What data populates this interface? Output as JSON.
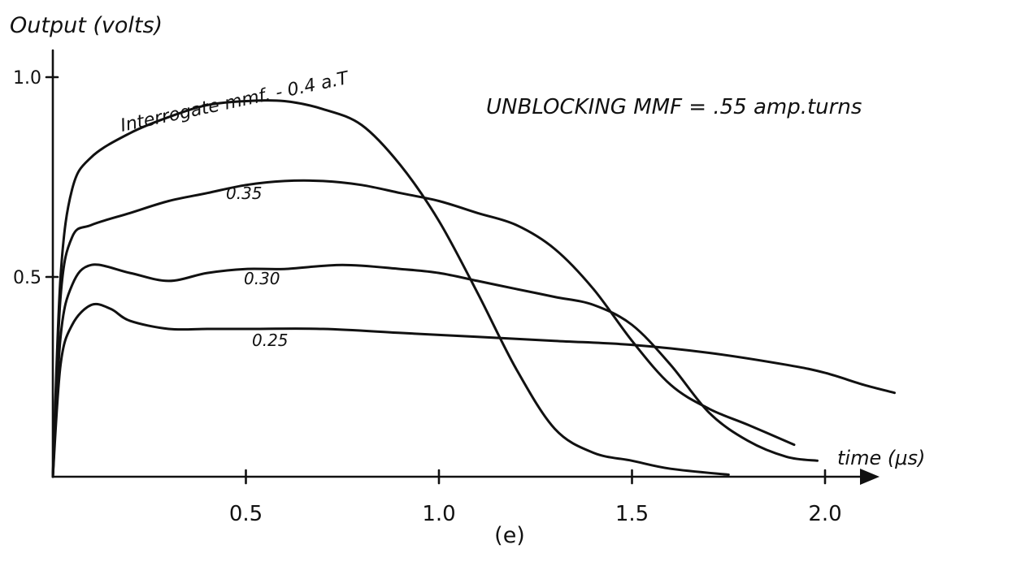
{
  "chart_data": {
    "type": "line",
    "ylabel": "Output (volts)",
    "xlabel": "time (μs)",
    "annotation": "UNBLOCKING MMF = .55 amp.turns",
    "panel_label": "(e)",
    "xlim": [
      0,
      2.2
    ],
    "ylim": [
      0,
      1.0
    ],
    "x_ticks": [
      0.5,
      1.0,
      1.5,
      2.0
    ],
    "x_tick_labels": [
      "0.5",
      "1.0",
      "1.5",
      "2.0"
    ],
    "y_ticks": [
      0.5,
      1.0
    ],
    "y_tick_labels": [
      "0.5",
      "1.0"
    ],
    "grid": false,
    "series": [
      {
        "name": "Interrogate mmf. - 0.4 a.T",
        "points": [
          [
            0,
            0
          ],
          [
            0.02,
            0.5
          ],
          [
            0.05,
            0.72
          ],
          [
            0.1,
            0.8
          ],
          [
            0.2,
            0.86
          ],
          [
            0.3,
            0.9
          ],
          [
            0.4,
            0.93
          ],
          [
            0.5,
            0.94
          ],
          [
            0.6,
            0.94
          ],
          [
            0.7,
            0.92
          ],
          [
            0.8,
            0.88
          ],
          [
            0.9,
            0.78
          ],
          [
            1.0,
            0.64
          ],
          [
            1.1,
            0.46
          ],
          [
            1.2,
            0.27
          ],
          [
            1.3,
            0.12
          ],
          [
            1.4,
            0.06
          ],
          [
            1.5,
            0.04
          ],
          [
            1.6,
            0.02
          ],
          [
            1.75,
            0.005
          ]
        ]
      },
      {
        "name": "0.35",
        "points": [
          [
            0,
            0
          ],
          [
            0.02,
            0.45
          ],
          [
            0.05,
            0.6
          ],
          [
            0.1,
            0.63
          ],
          [
            0.2,
            0.66
          ],
          [
            0.3,
            0.69
          ],
          [
            0.4,
            0.71
          ],
          [
            0.5,
            0.73
          ],
          [
            0.6,
            0.74
          ],
          [
            0.7,
            0.74
          ],
          [
            0.8,
            0.73
          ],
          [
            0.9,
            0.71
          ],
          [
            1.0,
            0.69
          ],
          [
            1.1,
            0.66
          ],
          [
            1.2,
            0.63
          ],
          [
            1.3,
            0.57
          ],
          [
            1.4,
            0.47
          ],
          [
            1.5,
            0.34
          ],
          [
            1.6,
            0.23
          ],
          [
            1.7,
            0.17
          ],
          [
            1.8,
            0.13
          ],
          [
            1.92,
            0.08
          ]
        ]
      },
      {
        "name": "0.30",
        "points": [
          [
            0,
            0
          ],
          [
            0.02,
            0.35
          ],
          [
            0.05,
            0.48
          ],
          [
            0.1,
            0.53
          ],
          [
            0.2,
            0.51
          ],
          [
            0.3,
            0.49
          ],
          [
            0.4,
            0.51
          ],
          [
            0.5,
            0.52
          ],
          [
            0.6,
            0.52
          ],
          [
            0.75,
            0.53
          ],
          [
            0.9,
            0.52
          ],
          [
            1.0,
            0.51
          ],
          [
            1.1,
            0.49
          ],
          [
            1.2,
            0.47
          ],
          [
            1.3,
            0.45
          ],
          [
            1.4,
            0.43
          ],
          [
            1.5,
            0.38
          ],
          [
            1.6,
            0.28
          ],
          [
            1.7,
            0.16
          ],
          [
            1.8,
            0.09
          ],
          [
            1.9,
            0.05
          ],
          [
            1.98,
            0.04
          ]
        ]
      },
      {
        "name": "0.25",
        "points": [
          [
            0,
            0
          ],
          [
            0.02,
            0.28
          ],
          [
            0.05,
            0.38
          ],
          [
            0.1,
            0.43
          ],
          [
            0.15,
            0.42
          ],
          [
            0.2,
            0.39
          ],
          [
            0.3,
            0.37
          ],
          [
            0.4,
            0.37
          ],
          [
            0.5,
            0.37
          ],
          [
            0.7,
            0.37
          ],
          [
            0.9,
            0.36
          ],
          [
            1.1,
            0.35
          ],
          [
            1.3,
            0.34
          ],
          [
            1.5,
            0.33
          ],
          [
            1.7,
            0.31
          ],
          [
            1.9,
            0.28
          ],
          [
            2.0,
            0.26
          ],
          [
            2.1,
            0.23
          ],
          [
            2.18,
            0.21
          ]
        ]
      }
    ]
  },
  "curve_labels": [
    "Interrogate mmf. - 0.4 a.T",
    "0.35",
    "0.30",
    "0.25"
  ]
}
